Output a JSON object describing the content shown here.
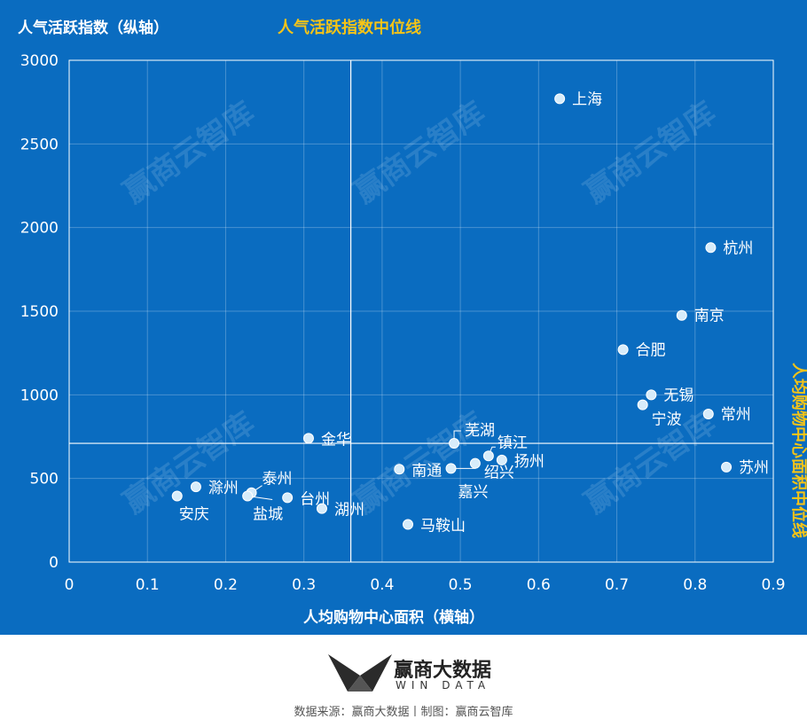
{
  "chart_data": {
    "type": "scatter",
    "title": "",
    "ylabel": "人气活跃指数（纵轴）",
    "xlabel": "人均购物中心面积（横轴）",
    "xlim": [
      0,
      0.9
    ],
    "ylim": [
      0,
      3000
    ],
    "x_ticks": [
      "0",
      "0.1",
      "0.2",
      "0.3",
      "0.4",
      "0.5",
      "0.6",
      "0.7",
      "0.8",
      "0.9"
    ],
    "y_ticks": [
      "0",
      "500",
      "1000",
      "1500",
      "2000",
      "2500",
      "3000"
    ],
    "grid": true,
    "median_y": {
      "label": "人气活跃指数中位线",
      "value": 710
    },
    "median_x": {
      "label": "人均购物中心面积中位线",
      "value": 0.36
    },
    "points": [
      {
        "name": "上海",
        "x": 0.627,
        "y": 2770
      },
      {
        "name": "杭州",
        "x": 0.82,
        "y": 1880
      },
      {
        "name": "南京",
        "x": 0.783,
        "y": 1475
      },
      {
        "name": "合肥",
        "x": 0.708,
        "y": 1270
      },
      {
        "name": "无锡",
        "x": 0.744,
        "y": 1000
      },
      {
        "name": "宁波",
        "x": 0.733,
        "y": 940
      },
      {
        "name": "常州",
        "x": 0.817,
        "y": 885
      },
      {
        "name": "苏州",
        "x": 0.84,
        "y": 568
      },
      {
        "name": "芜湖",
        "x": 0.492,
        "y": 710
      },
      {
        "name": "镇江",
        "x": 0.536,
        "y": 635
      },
      {
        "name": "扬州",
        "x": 0.553,
        "y": 610
      },
      {
        "name": "绍兴",
        "x": 0.519,
        "y": 590
      },
      {
        "name": "嘉兴",
        "x": 0.488,
        "y": 560
      },
      {
        "name": "南通",
        "x": 0.422,
        "y": 555
      },
      {
        "name": "马鞍山",
        "x": 0.433,
        "y": 225
      },
      {
        "name": "金华",
        "x": 0.306,
        "y": 740
      },
      {
        "name": "台州",
        "x": 0.279,
        "y": 385
      },
      {
        "name": "湖州",
        "x": 0.323,
        "y": 320
      },
      {
        "name": "泰州",
        "x": 0.233,
        "y": 415
      },
      {
        "name": "盐城",
        "x": 0.228,
        "y": 395
      },
      {
        "name": "滁州",
        "x": 0.162,
        "y": 450
      },
      {
        "name": "安庆",
        "x": 0.138,
        "y": 395
      }
    ]
  },
  "watermark_text": "赢商云智库",
  "footer": {
    "brand_cn": "赢商大数据",
    "brand_en": "WIN DATA",
    "source": "数据来源：赢商大数据丨制图：赢商云智库"
  }
}
